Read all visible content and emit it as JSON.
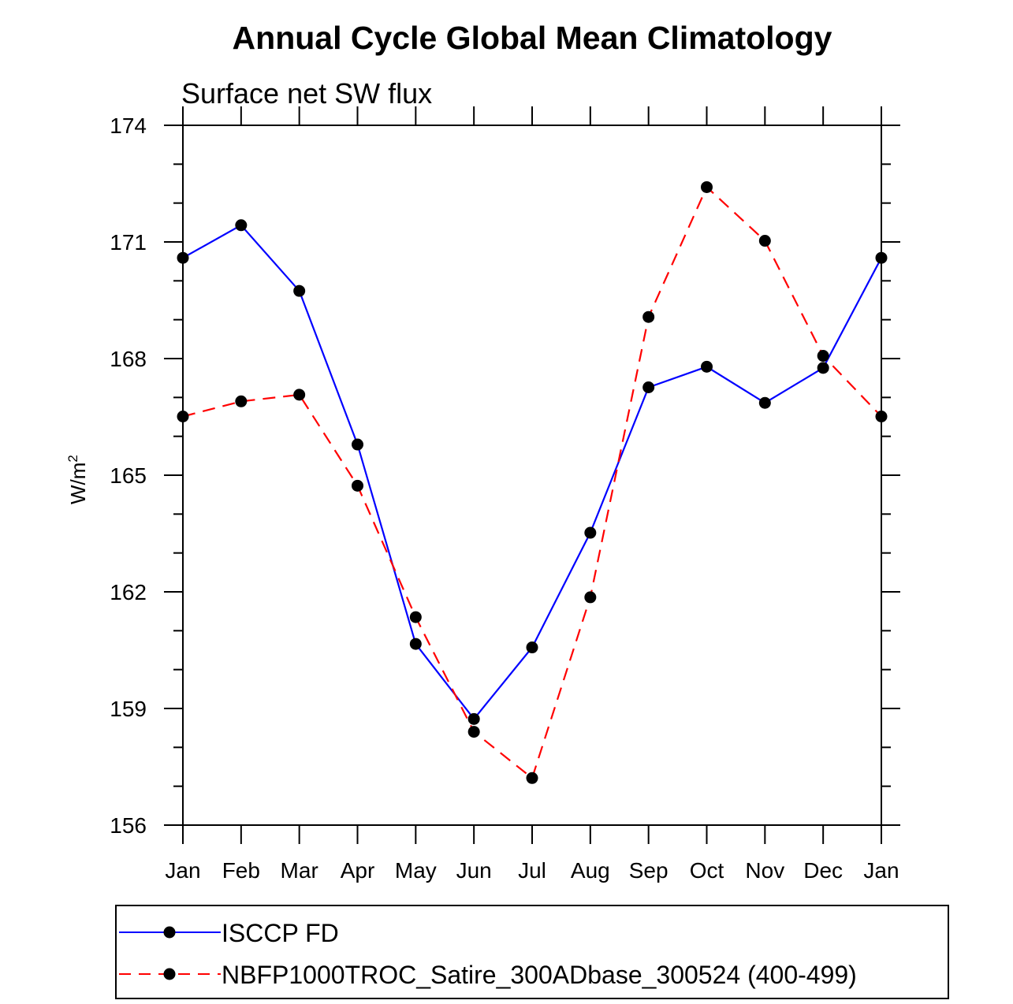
{
  "chart_data": {
    "type": "line",
    "title": "Annual Cycle Global Mean Climatology",
    "subtitle": "Surface net SW flux",
    "xlabel": "",
    "ylabel": "W/m",
    "ylabel_superscript": "2",
    "categories": [
      "Jan",
      "Feb",
      "Mar",
      "Apr",
      "May",
      "Jun",
      "Jul",
      "Aug",
      "Sep",
      "Oct",
      "Nov",
      "Dec",
      "Jan"
    ],
    "ylim": [
      156,
      174
    ],
    "yticks": [
      156,
      159,
      162,
      165,
      168,
      171,
      174
    ],
    "yticks_minor_step": 1,
    "grid": false,
    "legend_position": "bottom",
    "series": [
      {
        "name": "ISCCP FD",
        "color": "#0000ff",
        "style": "solid",
        "marker": "filled-circle",
        "values": [
          170.59,
          171.43,
          169.74,
          165.79,
          160.66,
          158.73,
          160.57,
          163.52,
          167.26,
          167.79,
          166.86,
          167.76,
          170.59
        ]
      },
      {
        "name": "NBFP1000TROC_Satire_300ADbase_300524 (400-499)",
        "color": "#ff0000",
        "style": "dashed",
        "marker": "filled-circle",
        "values": [
          166.51,
          166.9,
          167.07,
          164.73,
          161.35,
          158.4,
          157.21,
          161.86,
          169.07,
          172.41,
          171.03,
          168.07,
          166.51
        ]
      }
    ]
  }
}
